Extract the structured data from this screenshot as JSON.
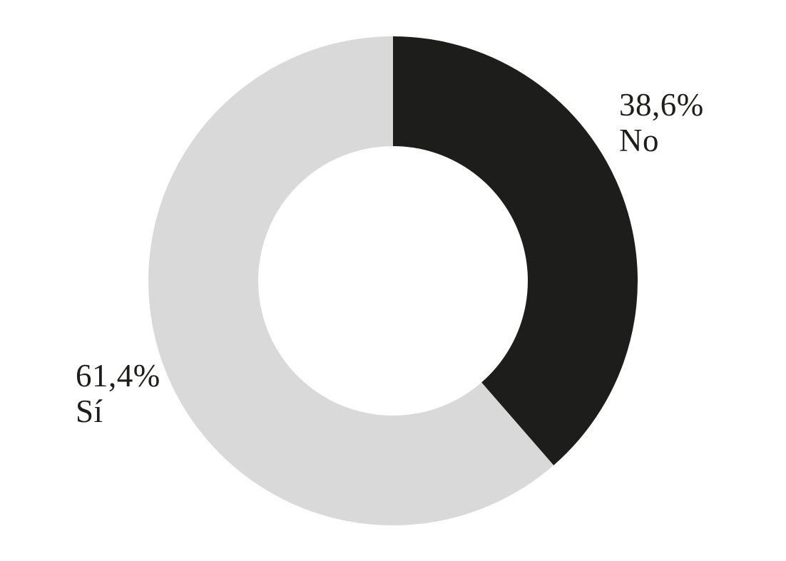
{
  "chart_data": {
    "type": "pie",
    "subtype": "donut",
    "title": "",
    "categories": [
      "No",
      "Sí"
    ],
    "values": [
      38.6,
      61.4
    ],
    "segments": [
      {
        "label": "No",
        "value": 38.6,
        "percent_label": "38,6%",
        "color": "#1d1d1b",
        "label_position": "top-right"
      },
      {
        "label": "Sí",
        "value": 61.4,
        "percent_label": "61,4%",
        "color": "#d9d9d9",
        "label_position": "left"
      }
    ],
    "start_angle_deg": 0,
    "direction": "clockwise",
    "donut_hole_ratio": 0.55,
    "legend_position": "none",
    "grid": false,
    "background_color": "#ffffff",
    "label_text_color": "#1d1d1b"
  }
}
